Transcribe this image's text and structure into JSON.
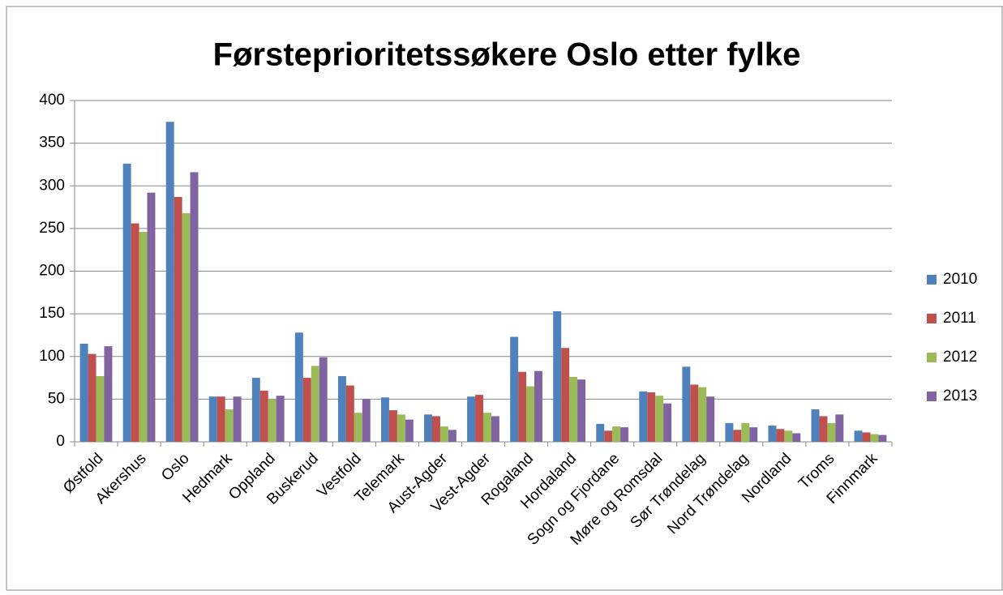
{
  "chart_data": {
    "type": "bar",
    "title": "Førsteprioritetssøkere Oslo etter fylke",
    "categories": [
      "Østfold",
      "Akershus",
      "Oslo",
      "Hedmark",
      "Oppland",
      "Buskerud",
      "Vestfold",
      "Telemark",
      "Aust-Agder",
      "Vest-Agder",
      "Rogaland",
      "Hordaland",
      "Sogn og Fjordane",
      "Møre og Romsdal",
      "Sør Trøndelag",
      "Nord Trøndelag",
      "Nordland",
      "Troms",
      "Finnmark"
    ],
    "series": [
      {
        "name": "2010",
        "color": "#4f81bd",
        "values": [
          115,
          326,
          375,
          53,
          75,
          128,
          77,
          52,
          32,
          53,
          123,
          153,
          21,
          59,
          88,
          22,
          19,
          38,
          13
        ]
      },
      {
        "name": "2011",
        "color": "#c0504d",
        "values": [
          103,
          256,
          287,
          53,
          60,
          75,
          66,
          37,
          30,
          55,
          82,
          110,
          13,
          58,
          67,
          14,
          15,
          30,
          11
        ]
      },
      {
        "name": "2012",
        "color": "#9bbb59",
        "values": [
          77,
          246,
          268,
          38,
          50,
          89,
          34,
          32,
          18,
          34,
          65,
          76,
          18,
          54,
          64,
          22,
          13,
          22,
          9
        ]
      },
      {
        "name": "2013",
        "color": "#8064a2",
        "values": [
          112,
          292,
          316,
          53,
          54,
          99,
          50,
          26,
          14,
          30,
          83,
          73,
          17,
          45,
          53,
          17,
          10,
          32,
          8
        ]
      }
    ],
    "ylim": [
      0,
      400
    ],
    "yticks": [
      0,
      50,
      100,
      150,
      200,
      250,
      300,
      350,
      400
    ],
    "grid": true,
    "legend": "right"
  }
}
